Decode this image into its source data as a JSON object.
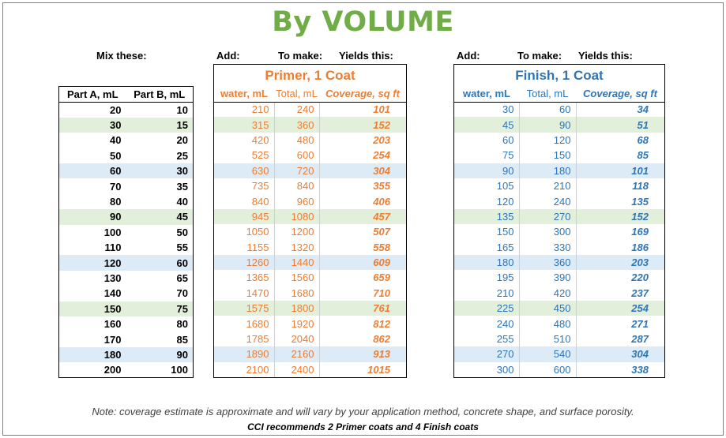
{
  "title": "By VOLUME",
  "labels": {
    "mix": "Mix these:",
    "add1": "Add:",
    "make1": "To make:",
    "yields1": "Yields this:",
    "add2": "Add:",
    "make2": "To make:",
    "yields2": "Yields this:"
  },
  "mix_table": {
    "headers": [
      "Part A, mL",
      "Part B, mL"
    ],
    "rows": [
      [
        "20",
        "10"
      ],
      [
        "30",
        "15"
      ],
      [
        "40",
        "20"
      ],
      [
        "50",
        "25"
      ],
      [
        "60",
        "30"
      ],
      [
        "70",
        "35"
      ],
      [
        "80",
        "40"
      ],
      [
        "90",
        "45"
      ],
      [
        "100",
        "50"
      ],
      [
        "110",
        "55"
      ],
      [
        "120",
        "60"
      ],
      [
        "130",
        "65"
      ],
      [
        "140",
        "70"
      ],
      [
        "150",
        "75"
      ],
      [
        "160",
        "80"
      ],
      [
        "170",
        "85"
      ],
      [
        "180",
        "90"
      ],
      [
        "200",
        "100"
      ]
    ],
    "row_shading": [
      "",
      "green",
      "",
      "",
      "blue",
      "",
      "",
      "green",
      "",
      "",
      "blue",
      "",
      "",
      "green",
      "",
      "",
      "blue",
      ""
    ]
  },
  "primer": {
    "title": "Primer, 1 Coat",
    "headers": [
      "water, mL",
      "Total, mL",
      "Coverage, sq ft"
    ],
    "rows": [
      [
        "210",
        "240",
        "101"
      ],
      [
        "315",
        "360",
        "152"
      ],
      [
        "420",
        "480",
        "203"
      ],
      [
        "525",
        "600",
        "254"
      ],
      [
        "630",
        "720",
        "304"
      ],
      [
        "735",
        "840",
        "355"
      ],
      [
        "840",
        "960",
        "406"
      ],
      [
        "945",
        "1080",
        "457"
      ],
      [
        "1050",
        "1200",
        "507"
      ],
      [
        "1155",
        "1320",
        "558"
      ],
      [
        "1260",
        "1440",
        "609"
      ],
      [
        "1365",
        "1560",
        "659"
      ],
      [
        "1470",
        "1680",
        "710"
      ],
      [
        "1575",
        "1800",
        "761"
      ],
      [
        "1680",
        "1920",
        "812"
      ],
      [
        "1785",
        "2040",
        "862"
      ],
      [
        "1890",
        "2160",
        "913"
      ],
      [
        "2100",
        "2400",
        "1015"
      ]
    ]
  },
  "finish": {
    "title": "Finish, 1 Coat",
    "headers": [
      "water, mL",
      "Total, mL",
      "Coverage, sq ft"
    ],
    "rows": [
      [
        "30",
        "60",
        "34"
      ],
      [
        "45",
        "90",
        "51"
      ],
      [
        "60",
        "120",
        "68"
      ],
      [
        "75",
        "150",
        "85"
      ],
      [
        "90",
        "180",
        "101"
      ],
      [
        "105",
        "210",
        "118"
      ],
      [
        "120",
        "240",
        "135"
      ],
      [
        "135",
        "270",
        "152"
      ],
      [
        "150",
        "300",
        "169"
      ],
      [
        "165",
        "330",
        "186"
      ],
      [
        "180",
        "360",
        "203"
      ],
      [
        "195",
        "390",
        "220"
      ],
      [
        "210",
        "420",
        "237"
      ],
      [
        "225",
        "450",
        "254"
      ],
      [
        "240",
        "480",
        "271"
      ],
      [
        "255",
        "510",
        "287"
      ],
      [
        "270",
        "540",
        "304"
      ],
      [
        "300",
        "600",
        "338"
      ]
    ]
  },
  "colors": {
    "title": "#70ad47",
    "primer": "#ed7d31",
    "finish": "#2e75b6",
    "green_row": "#e2efda",
    "blue_row": "#ddebf7"
  },
  "note": "Note: coverage estimate is approximate and will vary by your application method, concrete shape, and surface porosity.",
  "recommendation": "CCI recommends 2 Primer coats and 4 Finish coats"
}
